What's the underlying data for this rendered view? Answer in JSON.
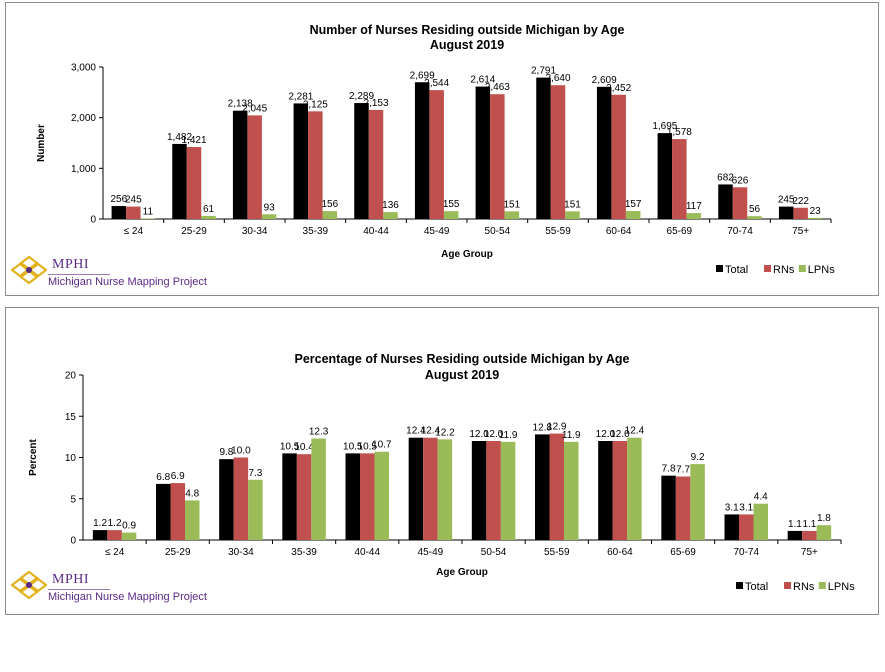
{
  "logo": {
    "name": "MPHI",
    "subtitle": "Michigan Nurse Mapping Project",
    "colors": {
      "purple": "#5b2a86",
      "gold": "#e2b21c"
    }
  },
  "colors": {
    "total": "#000000",
    "rns": "#c0504d",
    "lpns": "#9bbb59"
  },
  "chart_data": [
    {
      "type": "bar",
      "title": [
        "Number of Nurses Residing outside Michigan by Age",
        "August  2019"
      ],
      "xlabel": "Age Group",
      "ylabel": "Number",
      "ylim": [
        0,
        3000
      ],
      "yticks": [
        0,
        1000,
        2000,
        3000
      ],
      "ytick_labels": [
        "0",
        "1,000",
        "2,000",
        "3,000"
      ],
      "grid": false,
      "legend_position": "bottom-right",
      "categories": [
        "≤ 24",
        "25-29",
        "30-34",
        "35-39",
        "40-44",
        "45-49",
        "50-54",
        "55-59",
        "60-64",
        "65-69",
        "70-74",
        "75+"
      ],
      "series": [
        {
          "name": "Total",
          "values": [
            256,
            1482,
            2138,
            2281,
            2289,
            2699,
            2614,
            2791,
            2609,
            1695,
            682,
            245
          ],
          "labels": [
            "256",
            "1,482",
            "2,138",
            "2,281",
            "2,289",
            "2,699",
            "2,614",
            "2,791",
            "2,609",
            "1,695",
            "682",
            "245"
          ]
        },
        {
          "name": "RNs",
          "values": [
            245,
            1421,
            2045,
            2125,
            2153,
            2544,
            2463,
            2640,
            2452,
            1578,
            626,
            222
          ],
          "labels": [
            "245",
            "1,421",
            "2,045",
            "2,125",
            "2,153",
            "2,544",
            "2,463",
            "2,640",
            "2,452",
            "1,578",
            "626",
            "222"
          ]
        },
        {
          "name": "LPNs",
          "values": [
            11,
            61,
            93,
            156,
            136,
            155,
            151,
            151,
            157,
            117,
            56,
            23
          ],
          "labels": [
            "11",
            "61",
            "93",
            "156",
            "136",
            "155",
            "151",
            "151",
            "157",
            "117",
            "56",
            "23"
          ]
        }
      ]
    },
    {
      "type": "bar",
      "title": [
        "Percentage of Nurses Residing outside Michigan by Age",
        "August  2019"
      ],
      "xlabel": "Age Group",
      "ylabel": "Percent",
      "ylim": [
        0,
        20
      ],
      "yticks": [
        0,
        5,
        10,
        15,
        20
      ],
      "ytick_labels": [
        "0",
        "5",
        "10",
        "15",
        "20"
      ],
      "grid": false,
      "legend_position": "bottom-right",
      "categories": [
        "≤ 24",
        "25-29",
        "30-34",
        "35-39",
        "40-44",
        "45-49",
        "50-54",
        "55-59",
        "60-64",
        "65-69",
        "70-74",
        "75+"
      ],
      "series": [
        {
          "name": "Total",
          "values": [
            1.2,
            6.8,
            9.8,
            10.5,
            10.5,
            12.4,
            12.0,
            12.8,
            12.0,
            7.8,
            3.1,
            1.1
          ],
          "labels": [
            "1.2",
            "6.8",
            "9.8",
            "10.5",
            "10.5",
            "12.4",
            "12.0",
            "12.8",
            "12.0",
            "7.8",
            "3.1",
            "1.1"
          ]
        },
        {
          "name": "RNs",
          "values": [
            1.2,
            6.9,
            10.0,
            10.4,
            10.5,
            12.4,
            12.0,
            12.9,
            12.0,
            7.7,
            3.1,
            1.1
          ],
          "labels": [
            "1.2",
            "6.9",
            "10.0",
            "10.4",
            "10.5",
            "12.4",
            "12.0",
            "12.9",
            "12.0",
            "7.7",
            "3.1",
            "1.1"
          ]
        },
        {
          "name": "LPNs",
          "values": [
            0.9,
            4.8,
            7.3,
            12.3,
            10.7,
            12.2,
            11.9,
            11.9,
            12.4,
            9.2,
            4.4,
            1.8
          ],
          "labels": [
            "0.9",
            "4.8",
            "7.3",
            "12.3",
            "10.7",
            "12.2",
            "11.9",
            "11.9",
            "12.4",
            "9.2",
            "4.4",
            "1.8"
          ]
        }
      ]
    }
  ]
}
